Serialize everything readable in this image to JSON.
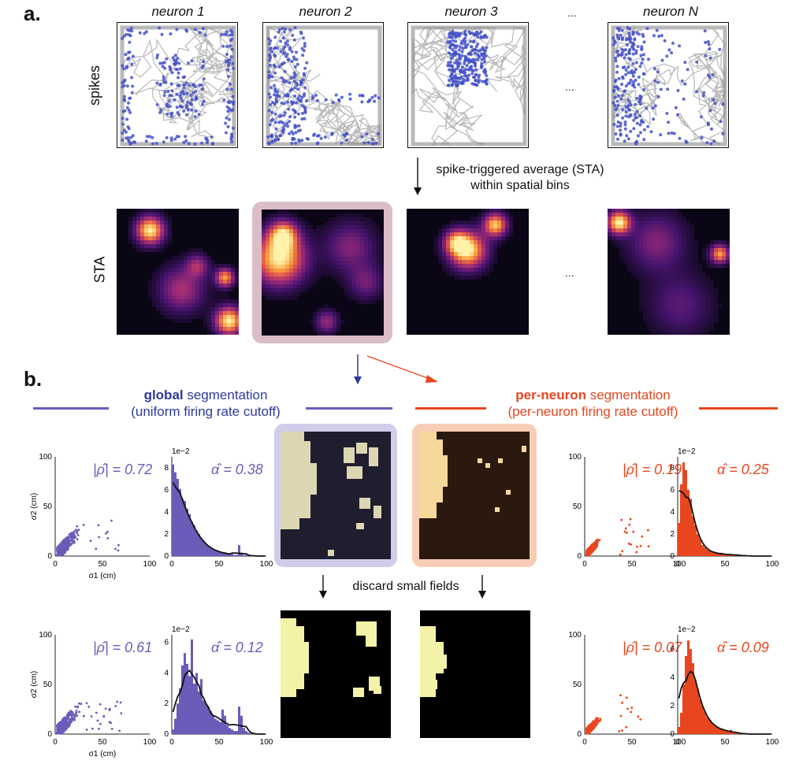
{
  "panel_a": {
    "label": "a.",
    "neuron_titles": [
      "neuron 1",
      "neuron 2",
      "neuron 3",
      "neuron N"
    ],
    "ellipsis": "...",
    "row_label_spikes": "spikes",
    "row_label_sta": "STA",
    "sta_caption_line1": "spike-triggered average (STA)",
    "sta_caption_line2": "within spatial bins"
  },
  "panel_b": {
    "label": "b.",
    "global_title_bold": "global",
    "global_title_rest": " segmentation",
    "global_subtitle": "(uniform firing rate cutoff)",
    "perneuron_title_bold": "per-neuron",
    "perneuron_title_rest": " segmentation",
    "perneuron_subtitle": "(per-neuron firing rate cutoff)",
    "discard_caption": "discard small fields",
    "colors": {
      "global": "#6a5cb8",
      "perneuron": "#e8461e",
      "global_hl": "#c9c8e8",
      "perneuron_hl": "#f6cdb4"
    }
  },
  "chart_data": [
    {
      "id": "global-scatter-top",
      "type": "scatter",
      "xlabel": "σ1 (cm)",
      "ylabel": "σ2 (cm)",
      "xlim": [
        0,
        100
      ],
      "ylim": [
        0,
        100
      ],
      "xticks": [
        0,
        50,
        100
      ],
      "yticks": [
        0,
        50,
        100
      ],
      "annotation": "|ρ̂| = 0.72",
      "color": "#6a5cb8"
    },
    {
      "id": "global-hist-top",
      "type": "bar",
      "scale_label": "1e−2",
      "xlim": [
        0,
        100
      ],
      "ylim": [
        0,
        9
      ],
      "xticks": [
        0,
        50,
        100
      ],
      "yticks": [
        0,
        2,
        4,
        6,
        8
      ],
      "annotation": "α̂ = 0.38",
      "color": "#6a5cb8",
      "bin_values": [
        8.3,
        7.6,
        7.0,
        6.1,
        5.2,
        5.0,
        4.3,
        3.8,
        3.1,
        2.8,
        2.3,
        2.0,
        1.6,
        1.4,
        1.1,
        0.9,
        0.8,
        0.6,
        0.5,
        0.5,
        0.4,
        0.3,
        0.3,
        0.2,
        0.2,
        0.2,
        0.1,
        0.1,
        1.0,
        0.3,
        0.1,
        0.1,
        0.1,
        0,
        0,
        0,
        0,
        0,
        0,
        0
      ]
    },
    {
      "id": "perneuron-scatter-top",
      "type": "scatter",
      "xlim": [
        0,
        100
      ],
      "ylim": [
        0,
        100
      ],
      "xticks": [
        0,
        50,
        100
      ],
      "yticks": [
        0,
        50,
        100
      ],
      "annotation": "|ρ̂| = 0.19",
      "color": "#e8461e"
    },
    {
      "id": "perneuron-hist-top",
      "type": "bar",
      "scale_label": "1e−2",
      "xlim": [
        0,
        100
      ],
      "ylim": [
        0,
        9
      ],
      "xticks": [
        0,
        50,
        100
      ],
      "yticks": [
        0,
        2,
        4,
        6,
        8
      ],
      "annotation": "α̂ = 0.25",
      "color": "#e8461e",
      "bin_values": [
        3.0,
        6.5,
        8.5,
        7.8,
        6.0,
        5.2,
        3.6,
        2.8,
        2.0,
        1.6,
        1.0,
        0.8,
        0.6,
        0.5,
        0.4,
        0.3,
        0.3,
        0.2,
        0.3,
        0.2,
        0.1,
        0.1,
        0.2,
        0.1,
        0.1,
        0.1,
        0.1,
        0.1,
        0,
        0,
        0,
        0,
        0,
        0,
        0,
        0,
        0,
        0,
        0,
        0
      ]
    },
    {
      "id": "global-scatter-bottom",
      "type": "scatter",
      "xlabel": "σ1 (cm)",
      "ylabel": "σ2 (cm)",
      "xlim": [
        0,
        100
      ],
      "ylim": [
        0,
        100
      ],
      "xticks": [
        0,
        50,
        100
      ],
      "yticks": [
        0,
        50,
        100
      ],
      "annotation": "|ρ̂| = 0.61",
      "color": "#6a5cb8"
    },
    {
      "id": "global-hist-bottom",
      "type": "bar",
      "scale_label": "1e−2",
      "xlim": [
        0,
        100
      ],
      "ylim": [
        0,
        6.5
      ],
      "xticks": [
        0,
        50,
        100
      ],
      "yticks": [
        0,
        2,
        4,
        6
      ],
      "annotation": "α̂ = 0.12",
      "color": "#6a5cb8",
      "bin_values": [
        0.3,
        1.0,
        2.0,
        3.0,
        4.5,
        5.3,
        4.6,
        3.8,
        6.2,
        3.3,
        4.0,
        2.8,
        3.6,
        2.2,
        2.0,
        1.8,
        1.5,
        1.2,
        1.0,
        0.9,
        0.8,
        1.6,
        1.2,
        0.6,
        0.4,
        0.3,
        0.2,
        0.2,
        1.8,
        1.2,
        0.4,
        0.2,
        0.1,
        0,
        0,
        0,
        0,
        0,
        0,
        0
      ]
    },
    {
      "id": "perneuron-scatter-bottom",
      "type": "scatter",
      "xlim": [
        0,
        100
      ],
      "ylim": [
        0,
        100
      ],
      "xticks": [
        0,
        50,
        100
      ],
      "yticks": [
        0,
        50,
        100
      ],
      "annotation": "|ρ̂| = 0.07",
      "color": "#e8461e"
    },
    {
      "id": "perneuron-hist-bottom",
      "type": "bar",
      "scale_label": "1e−2",
      "xlim": [
        0,
        100
      ],
      "ylim": [
        0,
        7
      ],
      "xticks": [
        0,
        50,
        100
      ],
      "yticks": [
        0,
        2,
        4,
        6
      ],
      "annotation": "α̂ = 0.09",
      "color": "#e8461e",
      "bin_values": [
        0.5,
        1.5,
        3.5,
        5.5,
        6.6,
        6.0,
        5.0,
        3.8,
        3.2,
        2.5,
        2.0,
        1.6,
        1.2,
        1.0,
        0.8,
        0.6,
        0.5,
        0.4,
        0.4,
        0.3,
        0.2,
        0.2,
        0.3,
        0.1,
        0.1,
        0.1,
        0.1,
        0,
        0,
        0,
        0,
        0,
        0,
        0,
        0,
        0,
        0,
        0,
        0,
        0
      ]
    }
  ]
}
